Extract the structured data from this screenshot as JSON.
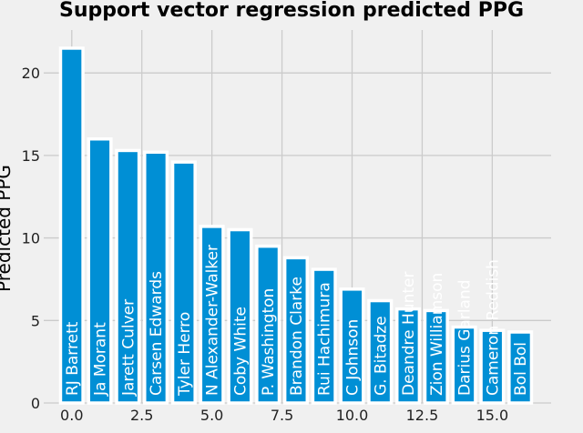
{
  "chart_data": {
    "type": "bar",
    "title": "Support vector regression predicted PPG",
    "xlabel": "",
    "ylabel": "Predicted PPG",
    "xlim": [
      -1.0,
      17.1
    ],
    "ylim": [
      0,
      22.6
    ],
    "xticks": [
      "0.0",
      "2.5",
      "5.0",
      "7.5",
      "10.0",
      "12.5",
      "15.0"
    ],
    "xtick_values": [
      0,
      2.5,
      5,
      7.5,
      10,
      12.5,
      15
    ],
    "yticks": [
      "0",
      "5",
      "10",
      "15",
      "20"
    ],
    "ytick_values": [
      0,
      5,
      10,
      15,
      20
    ],
    "grid": true,
    "bar_color": "#008fd5",
    "bar_edge_color": "#ffffff",
    "background": "#f0f0f0",
    "grid_color": "#cbcbcb",
    "x": [
      0,
      1,
      2,
      3,
      4,
      5,
      6,
      7,
      8,
      9,
      10,
      11,
      12,
      13,
      14,
      15,
      16
    ],
    "categories": [
      "RJ Barrett",
      "Ja Morant",
      "Jarett Culver",
      "Carsen Edwards",
      "Tyler Herro",
      "N Alexander-Walker",
      "Coby White",
      "P. Washington",
      "Brandon Clarke",
      "Rui Hachimura",
      "C Johnson",
      "G. Bitadze",
      "Deandre Hunter",
      "Zion Williamson",
      "Darius Garland",
      "Cameron Reddish",
      "Bol Bol"
    ],
    "values": [
      21.5,
      16.0,
      15.3,
      15.2,
      14.6,
      10.7,
      10.5,
      9.5,
      8.8,
      8.1,
      6.9,
      6.2,
      5.7,
      5.6,
      4.6,
      4.4,
      4.3
    ]
  }
}
